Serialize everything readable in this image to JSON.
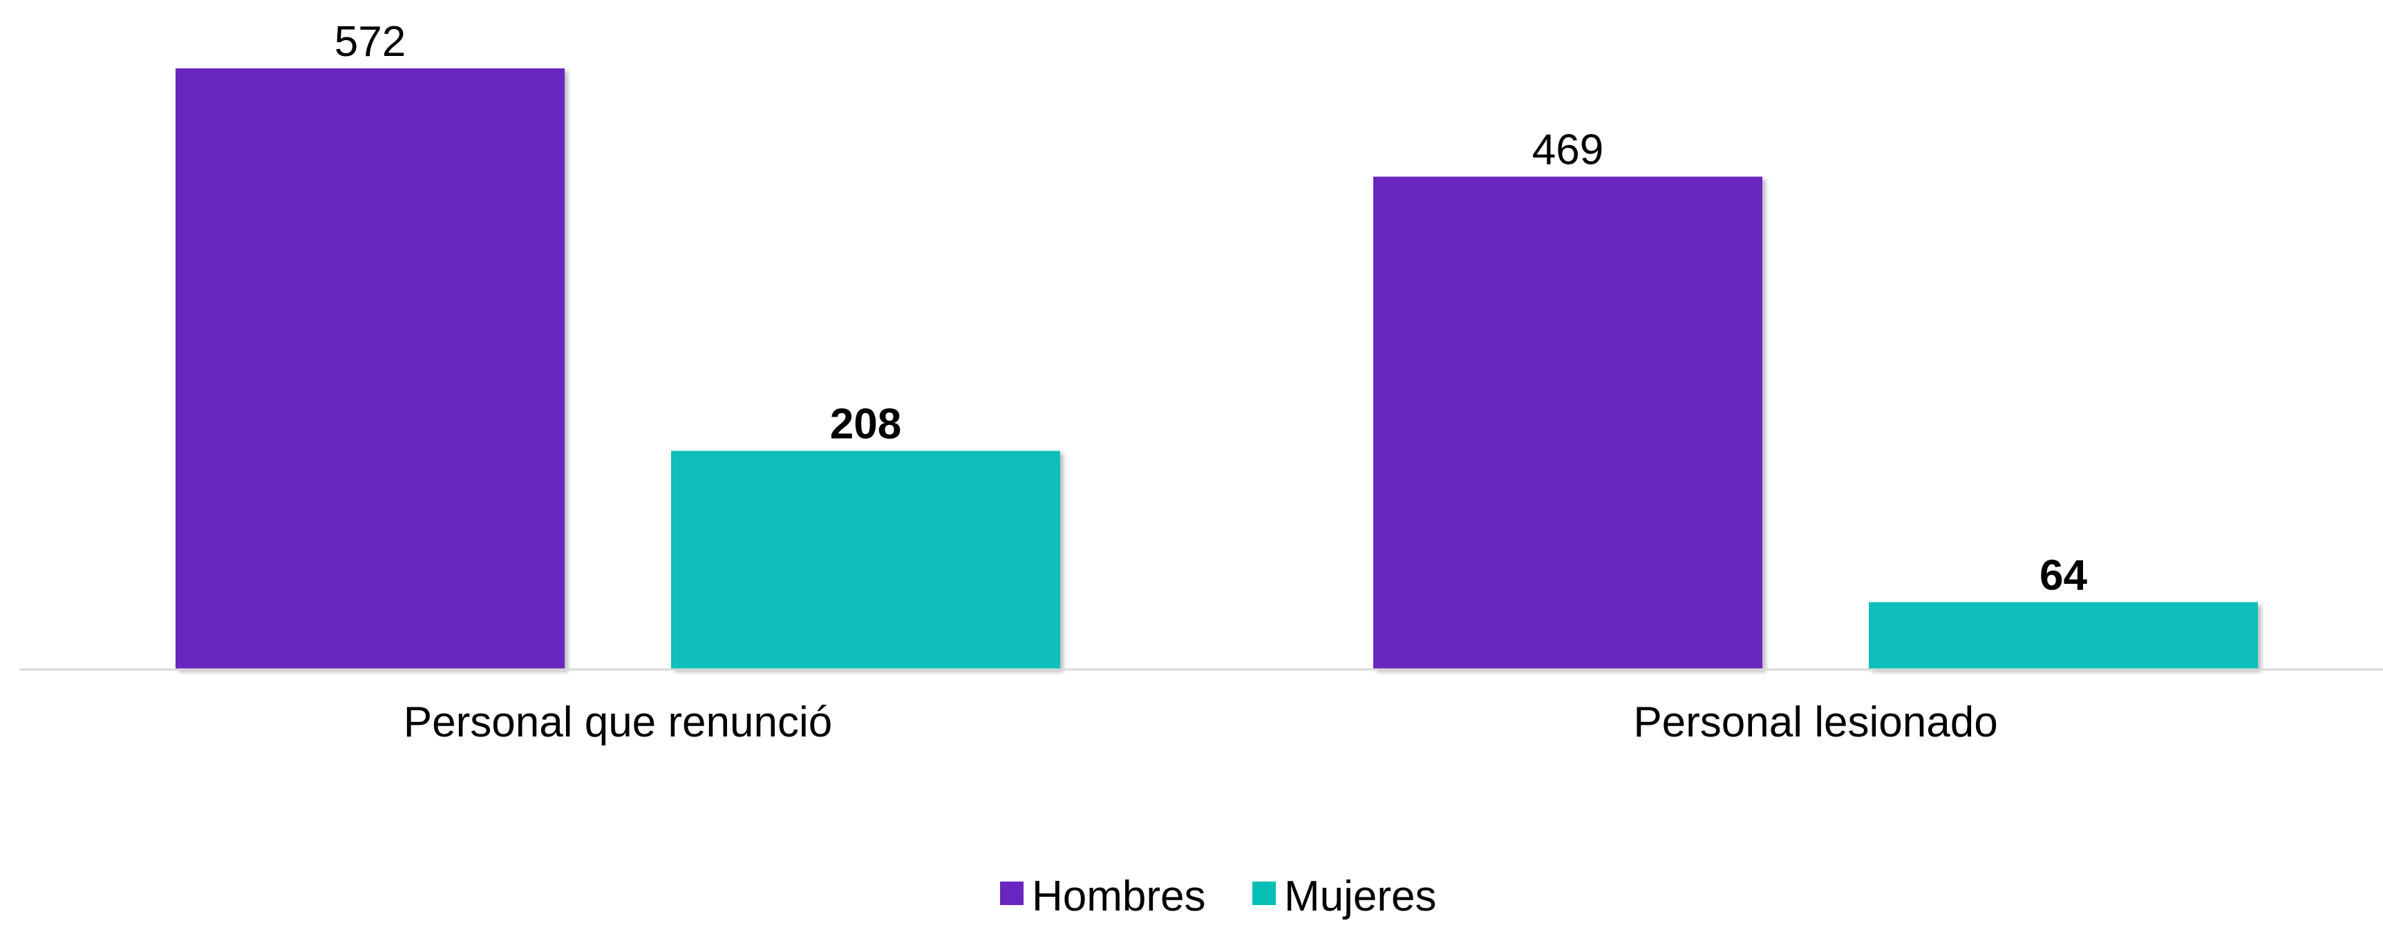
{
  "chart_data": {
    "type": "bar",
    "categories": [
      "Personal que renunció",
      "Personal lesionado"
    ],
    "series": [
      {
        "name": "Hombres",
        "values": [
          572,
          469
        ],
        "color": "#6a26c0",
        "label_bold": false
      },
      {
        "name": "Mujeres",
        "values": [
          208,
          64
        ],
        "color": "#08bfb8",
        "label_bold": true
      }
    ],
    "title": "",
    "xlabel": "",
    "ylabel": "",
    "ylim": [
      0,
      572
    ],
    "grid": false,
    "legend_position": "bottom-center",
    "axis_color": "#d9d9d9"
  }
}
